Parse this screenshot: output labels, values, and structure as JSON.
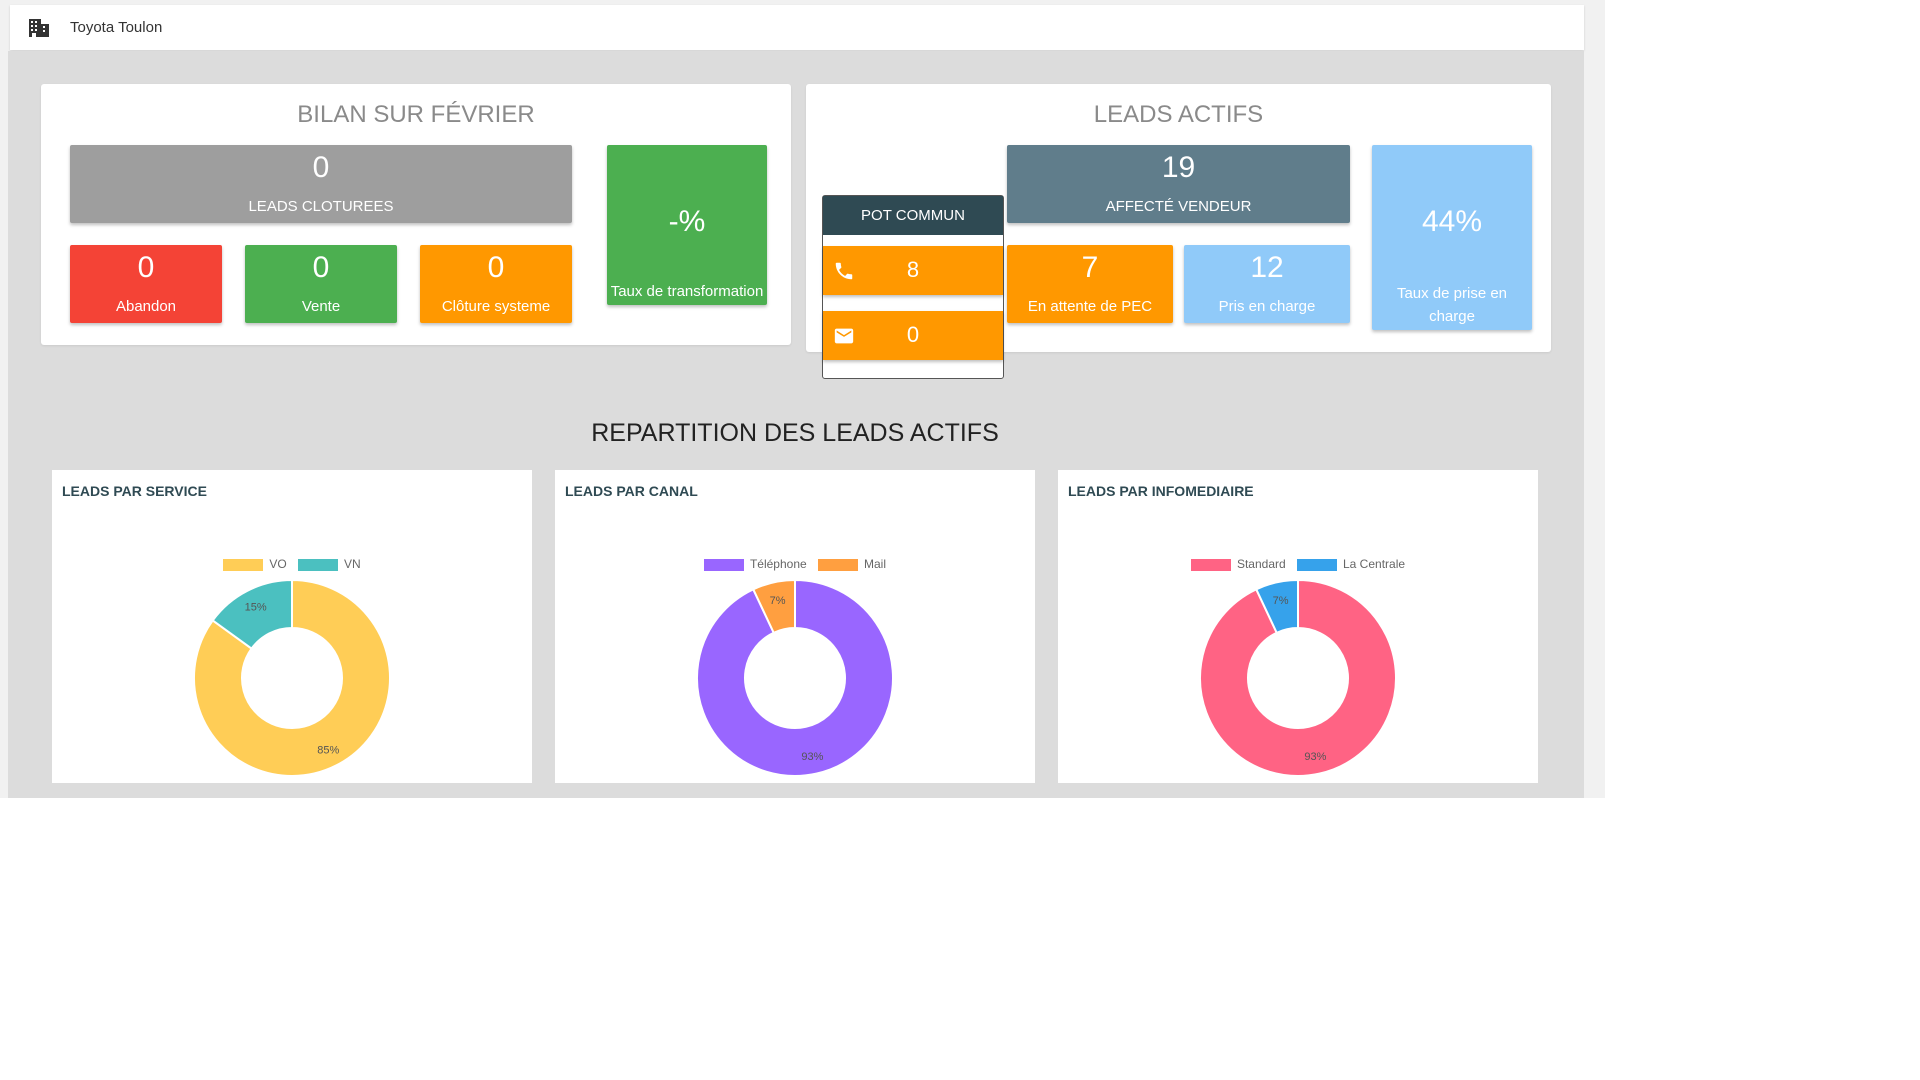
{
  "header": {
    "title": "Toyota Toulon",
    "icon": "building-icon"
  },
  "bilan": {
    "title": "BILAN SUR FÉVRIER",
    "leads_cloturees": {
      "value": "0",
      "label": "LEADS CLOTUREES"
    },
    "abandon": {
      "value": "0",
      "label": "Abandon"
    },
    "vente": {
      "value": "0",
      "label": "Vente"
    },
    "cloture_systeme": {
      "value": "0",
      "label": "Clôture systeme"
    },
    "taux_transformation": {
      "value": "-%",
      "label": "Taux de transformation"
    }
  },
  "leads_actifs": {
    "title": "LEADS ACTIFS",
    "pot_commun": {
      "label": "POT COMMUN",
      "phone_value": "8",
      "mail_value": "0"
    },
    "affecte_vendeur": {
      "value": "19",
      "label": "AFFECTÉ VENDEUR"
    },
    "en_attente": {
      "value": "7",
      "label": "En attente de PEC"
    },
    "pris_en_charge": {
      "value": "12",
      "label": "Pris en charge"
    },
    "taux_prise": {
      "value": "44%",
      "label_line1": "Taux de prise en",
      "label_line2": "charge"
    }
  },
  "repartition": {
    "title": "REPARTITION DES LEADS ACTIFS",
    "cards": [
      {
        "title": "LEADS PAR SERVICE"
      },
      {
        "title": "LEADS PAR CANAL"
      },
      {
        "title": "LEADS PAR INFOMEDIAIRE"
      }
    ]
  },
  "colors": {
    "grey": "#9e9e9e",
    "red": "#f44336",
    "green": "#4caf50",
    "orange": "#ff9800",
    "slate": "#607d8b",
    "light_blue": "#90caf9",
    "dark_teal": "#2f4a53"
  },
  "chart_data": [
    {
      "type": "pie",
      "title": "LEADS PAR SERVICE",
      "categories": [
        "VO",
        "VN"
      ],
      "values": [
        85,
        15
      ],
      "labels": [
        "85%",
        "15%"
      ],
      "colors": [
        "#ffcd56",
        "#4bc0c0"
      ],
      "legend": "top"
    },
    {
      "type": "pie",
      "title": "LEADS PAR CANAL",
      "categories": [
        "Téléphone",
        "Mail"
      ],
      "values": [
        93,
        7
      ],
      "labels": [
        "93%",
        "7%"
      ],
      "colors": [
        "#9966ff",
        "#ff9f40"
      ],
      "legend": "top"
    },
    {
      "type": "pie",
      "title": "LEADS PAR INFOMEDIAIRE",
      "categories": [
        "Standard",
        "La Centrale"
      ],
      "values": [
        93,
        7
      ],
      "labels": [
        "93%",
        "7%"
      ],
      "colors": [
        "#ff6384",
        "#36a2eb"
      ],
      "legend": "top"
    }
  ]
}
